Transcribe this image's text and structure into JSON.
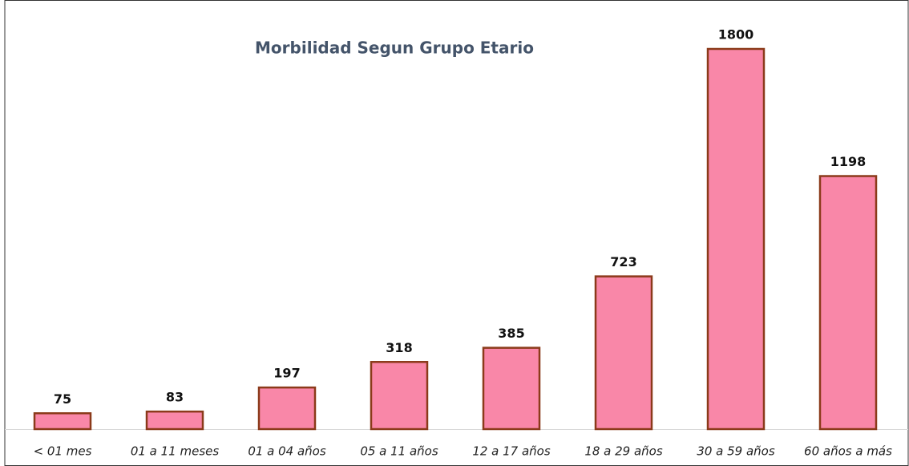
{
  "chart_data": {
    "type": "bar",
    "title": "Morbilidad Segun Grupo Etario",
    "categories": [
      "< 01 mes",
      "01 a 11 meses",
      "01 a 04 años",
      "05 a 11 años",
      "12 a 17 años",
      "18 a 29 años",
      "30 a 59 años",
      "60 años a más"
    ],
    "values": [
      75,
      83,
      197,
      318,
      385,
      723,
      1800,
      1198
    ],
    "color": "#f987a8",
    "edge_color": "#8b3a1a"
  }
}
